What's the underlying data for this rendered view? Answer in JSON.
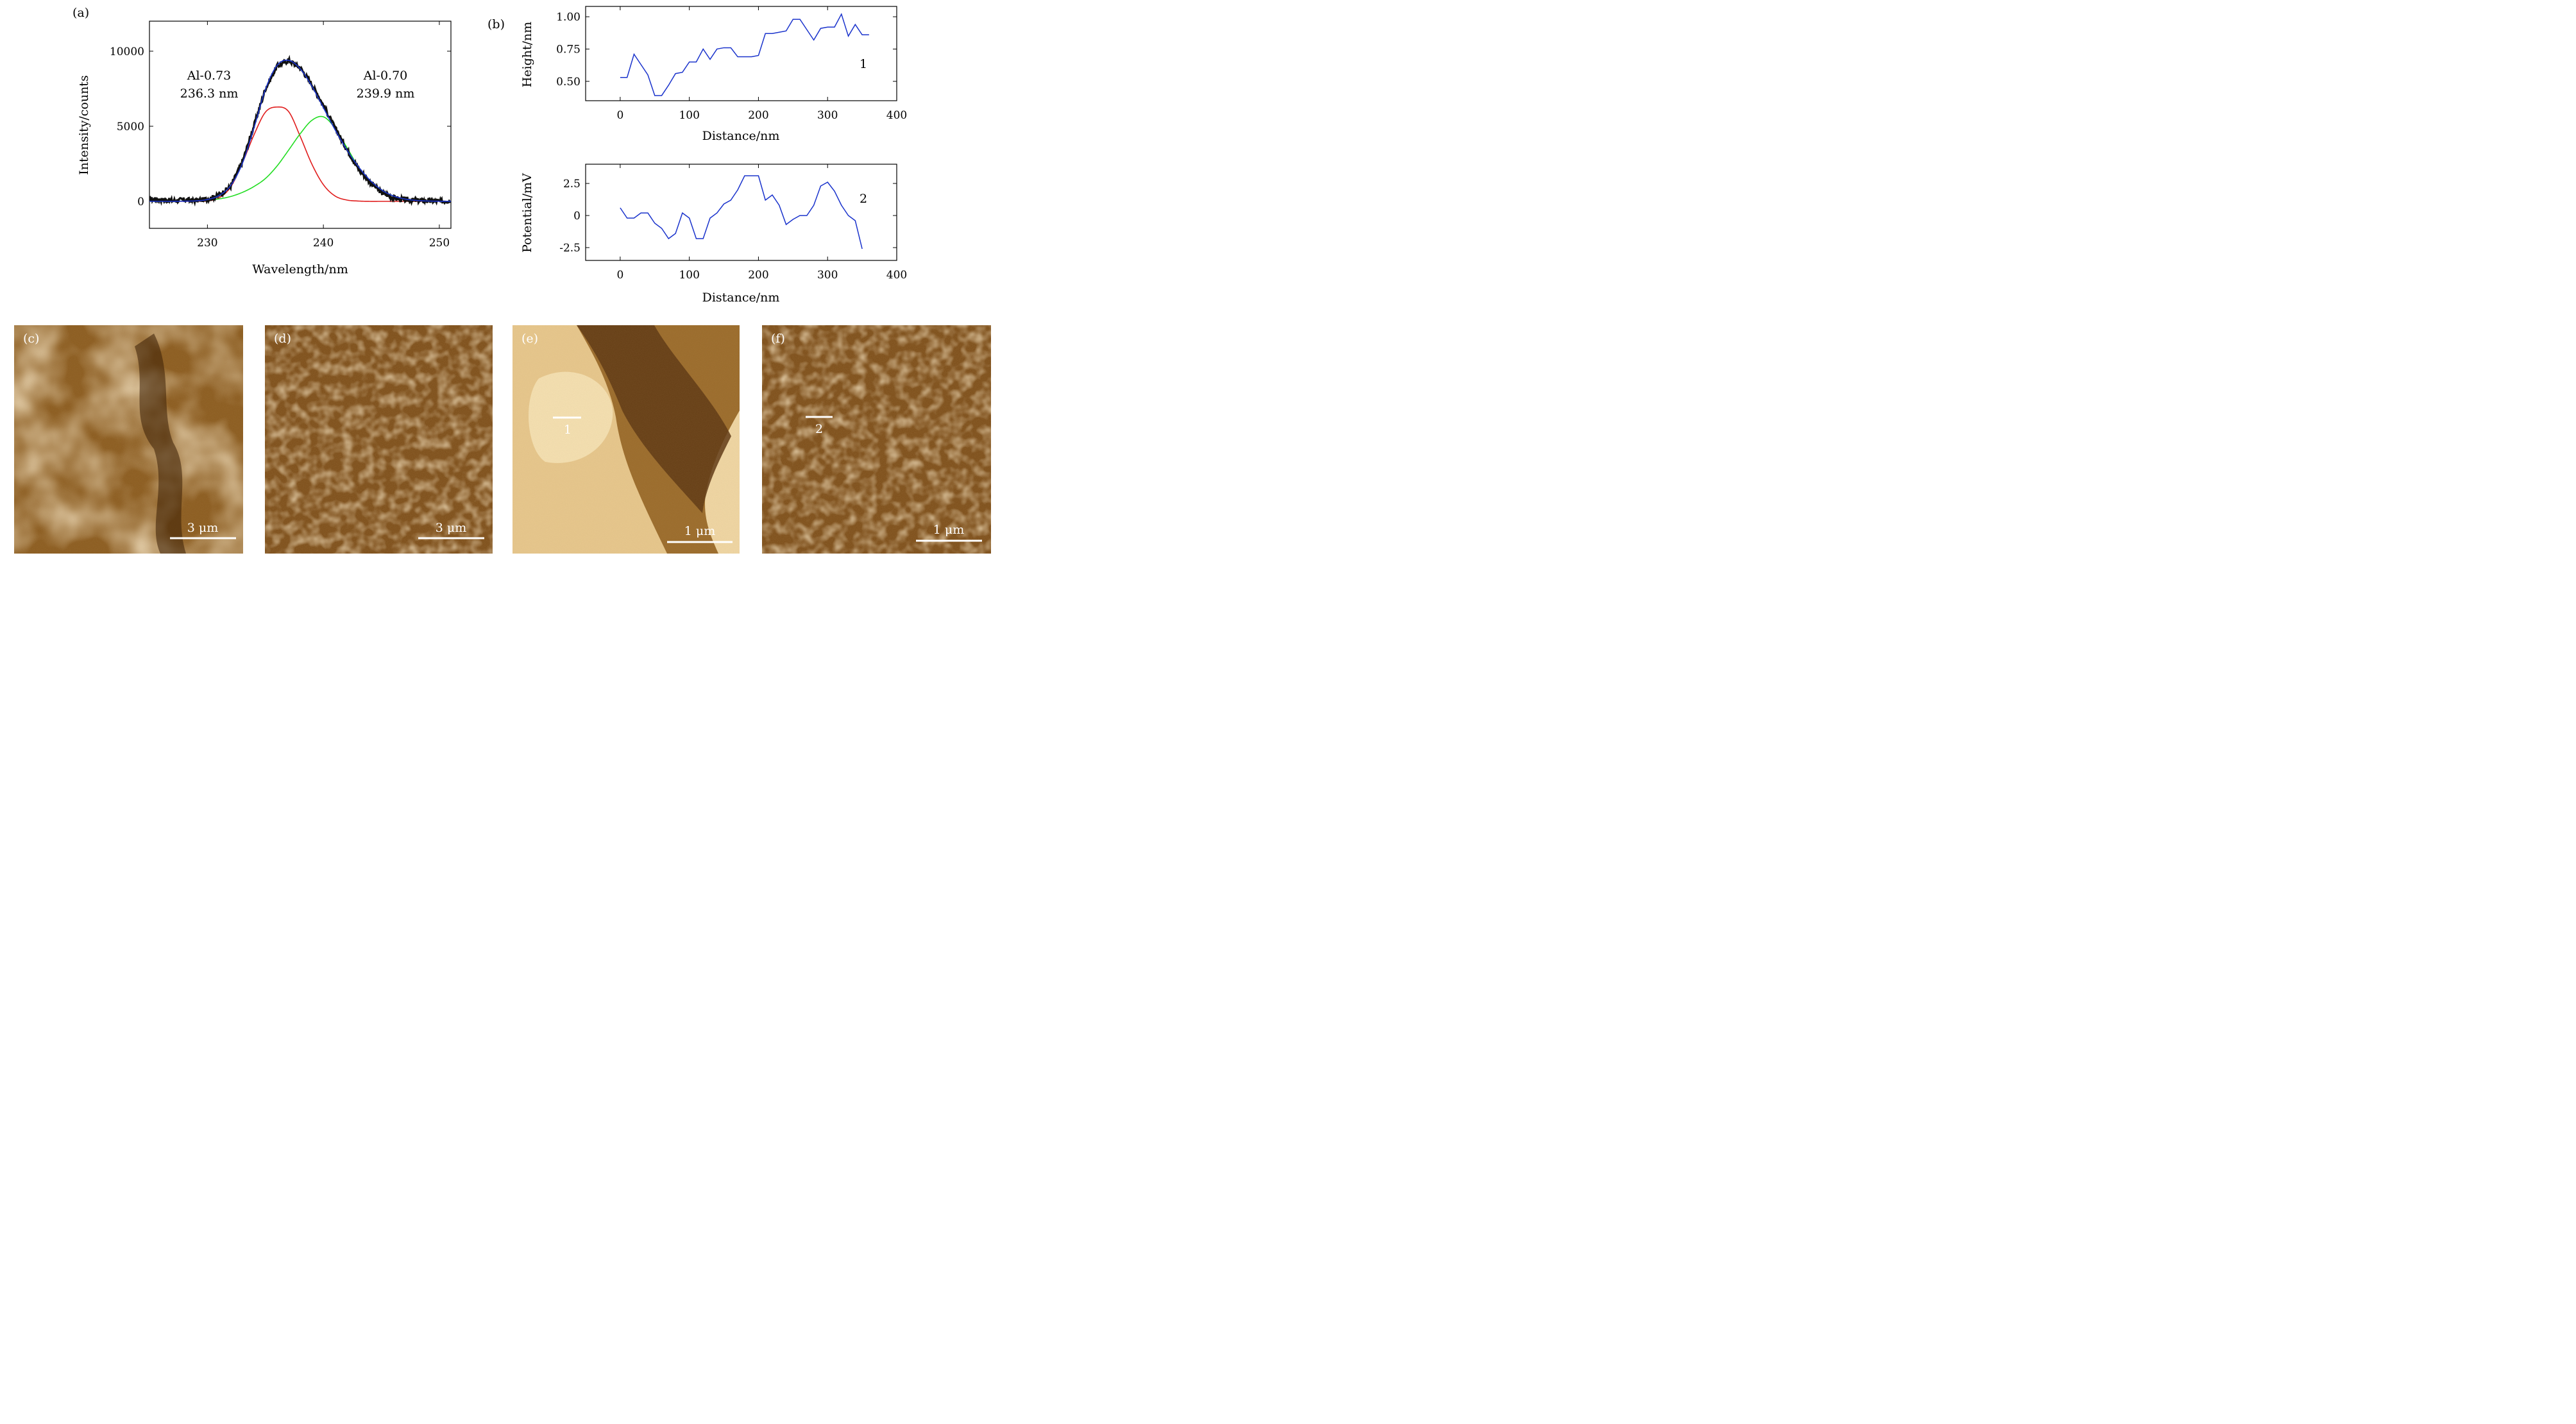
{
  "panel_labels": {
    "a": "(a)",
    "b": "(b)",
    "c": "(c)",
    "d": "(d)",
    "e": "(e)",
    "f": "(f)"
  },
  "colors": {
    "measured": "#111111",
    "fit_total": "#1a33cc",
    "component_1": "#e01c1c",
    "component_2": "#22dd22",
    "profile_line": "#1a33cc",
    "afm_bright": "#f3ddb0",
    "afm_dark": "#3b1f06"
  },
  "chart_data": [
    {
      "type": "line",
      "panel": "(a)",
      "xlabel": "Wavelength/nm",
      "ylabel": "Intensity/counts",
      "xlim": [
        225,
        251
      ],
      "ylim": [
        -1800,
        12000
      ],
      "xticks": [
        "230",
        "240",
        "250"
      ],
      "yticks": [
        "0",
        "5000",
        "10000"
      ],
      "annotations": [
        {
          "lines": [
            "Al-0.73",
            "236.3 nm"
          ]
        },
        {
          "lines": [
            "Al-0.70",
            "239.9 nm"
          ]
        }
      ],
      "series": [
        {
          "kind": "measured",
          "x": [
            225,
            226,
            227,
            228,
            229,
            230,
            231,
            232,
            233,
            234,
            235,
            236,
            237,
            238,
            239,
            240,
            241,
            242,
            243,
            244,
            245,
            246,
            247,
            248,
            249,
            250,
            251
          ],
          "y": [
            150,
            100,
            50,
            100,
            50,
            150,
            400,
            1000,
            2600,
            5000,
            7500,
            9000,
            9400,
            8900,
            7800,
            6400,
            4900,
            3500,
            2200,
            1300,
            600,
            250,
            100,
            50,
            50,
            0,
            50
          ]
        },
        {
          "kind": "fit_total",
          "x": [
            225,
            226,
            227,
            228,
            229,
            230,
            231,
            232,
            233,
            234,
            235,
            236,
            237,
            238,
            239,
            240,
            241,
            242,
            243,
            244,
            245,
            246,
            247,
            248,
            249,
            250,
            251
          ],
          "y": [
            0,
            0,
            0,
            10,
            30,
            120,
            390,
            1050,
            2500,
            4860,
            7450,
            9050,
            9390,
            8830,
            7680,
            6240,
            4780,
            3460,
            2330,
            1420,
            770,
            370,
            160,
            60,
            20,
            5,
            0
          ]
        },
        {
          "kind": "component",
          "peak_nm": 236.3,
          "x": [
            225,
            226,
            227,
            228,
            229,
            230,
            231,
            232,
            233,
            234,
            235,
            236,
            237,
            238,
            239,
            240,
            241,
            242,
            243,
            244,
            245,
            246,
            247,
            248,
            249,
            250,
            251
          ],
          "y": [
            0,
            0,
            0,
            0,
            0,
            30,
            230,
            950,
            2530,
            4400,
            5940,
            6280,
            5980,
            4330,
            2490,
            1110,
            360,
            90,
            20,
            0,
            0,
            0,
            0,
            0,
            0,
            0,
            0
          ]
        },
        {
          "kind": "component",
          "peak_nm": 239.9,
          "x": [
            225,
            226,
            227,
            228,
            229,
            230,
            231,
            232,
            233,
            234,
            235,
            236,
            237,
            238,
            239,
            240,
            241,
            242,
            243,
            244,
            245,
            246,
            247,
            248,
            249,
            250,
            251
          ],
          "y": [
            0,
            0,
            0,
            10,
            30,
            90,
            160,
            320,
            590,
            980,
            1520,
            2350,
            3410,
            4500,
            5390,
            5630,
            4880,
            3620,
            2330,
            1410,
            770,
            370,
            160,
            60,
            20,
            5,
            0
          ]
        }
      ]
    },
    {
      "type": "line",
      "panel": "(b)",
      "xlabel": "Distance/nm",
      "ylabel": "Height/nm",
      "xlim": [
        -50,
        400
      ],
      "ylim": [
        0.35,
        1.08
      ],
      "xticks": [
        "0",
        "100",
        "200",
        "300",
        "400"
      ],
      "yticks": [
        "0.50",
        "0.75",
        "1.00"
      ],
      "series_label": "1",
      "x": [
        0,
        10,
        20,
        30,
        40,
        50,
        60,
        70,
        80,
        90,
        100,
        110,
        120,
        130,
        140,
        150,
        160,
        170,
        180,
        190,
        200,
        210,
        220,
        230,
        240,
        250,
        260,
        270,
        280,
        290,
        300,
        310,
        320,
        330,
        340,
        350,
        360
      ],
      "y": [
        0.53,
        0.53,
        0.71,
        0.63,
        0.55,
        0.39,
        0.39,
        0.47,
        0.56,
        0.57,
        0.65,
        0.65,
        0.75,
        0.67,
        0.75,
        0.76,
        0.76,
        0.69,
        0.69,
        0.69,
        0.7,
        0.87,
        0.87,
        0.88,
        0.89,
        0.98,
        0.98,
        0.9,
        0.82,
        0.91,
        0.92,
        0.92,
        1.02,
        0.85,
        0.94,
        0.86,
        0.86
      ]
    },
    {
      "type": "line",
      "panel": "(b)",
      "xlabel": "Distance/nm",
      "ylabel": "Potential/mV",
      "xlim": [
        -50,
        400
      ],
      "ylim": [
        -3.5,
        4.0
      ],
      "xticks": [
        "0",
        "100",
        "200",
        "300",
        "400"
      ],
      "yticks": [
        "-2.5",
        "0",
        "2.5"
      ],
      "series_label": "2",
      "x": [
        0,
        10,
        20,
        30,
        40,
        50,
        60,
        70,
        80,
        90,
        100,
        110,
        120,
        130,
        140,
        150,
        160,
        170,
        180,
        190,
        200,
        210,
        220,
        230,
        240,
        250,
        260,
        270,
        280,
        290,
        300,
        310,
        320,
        330,
        340,
        350
      ],
      "y": [
        0.6,
        -0.2,
        -0.2,
        0.2,
        0.2,
        -0.6,
        -1.0,
        -1.8,
        -1.4,
        0.2,
        -0.2,
        -1.8,
        -1.8,
        -0.2,
        0.2,
        0.9,
        1.2,
        2.0,
        3.1,
        3.1,
        3.1,
        1.2,
        1.6,
        0.8,
        -0.7,
        -0.3,
        0.0,
        0.0,
        0.8,
        2.3,
        2.6,
        1.9,
        0.8,
        0.0,
        -0.4,
        -2.6
      ]
    }
  ],
  "images": {
    "c": {
      "scale_bar": "3 μm"
    },
    "d": {
      "scale_bar": "3 μm"
    },
    "e": {
      "scale_bar": "1 μm",
      "marker": "1"
    },
    "f": {
      "scale_bar": "1 μm",
      "marker": "2"
    }
  }
}
